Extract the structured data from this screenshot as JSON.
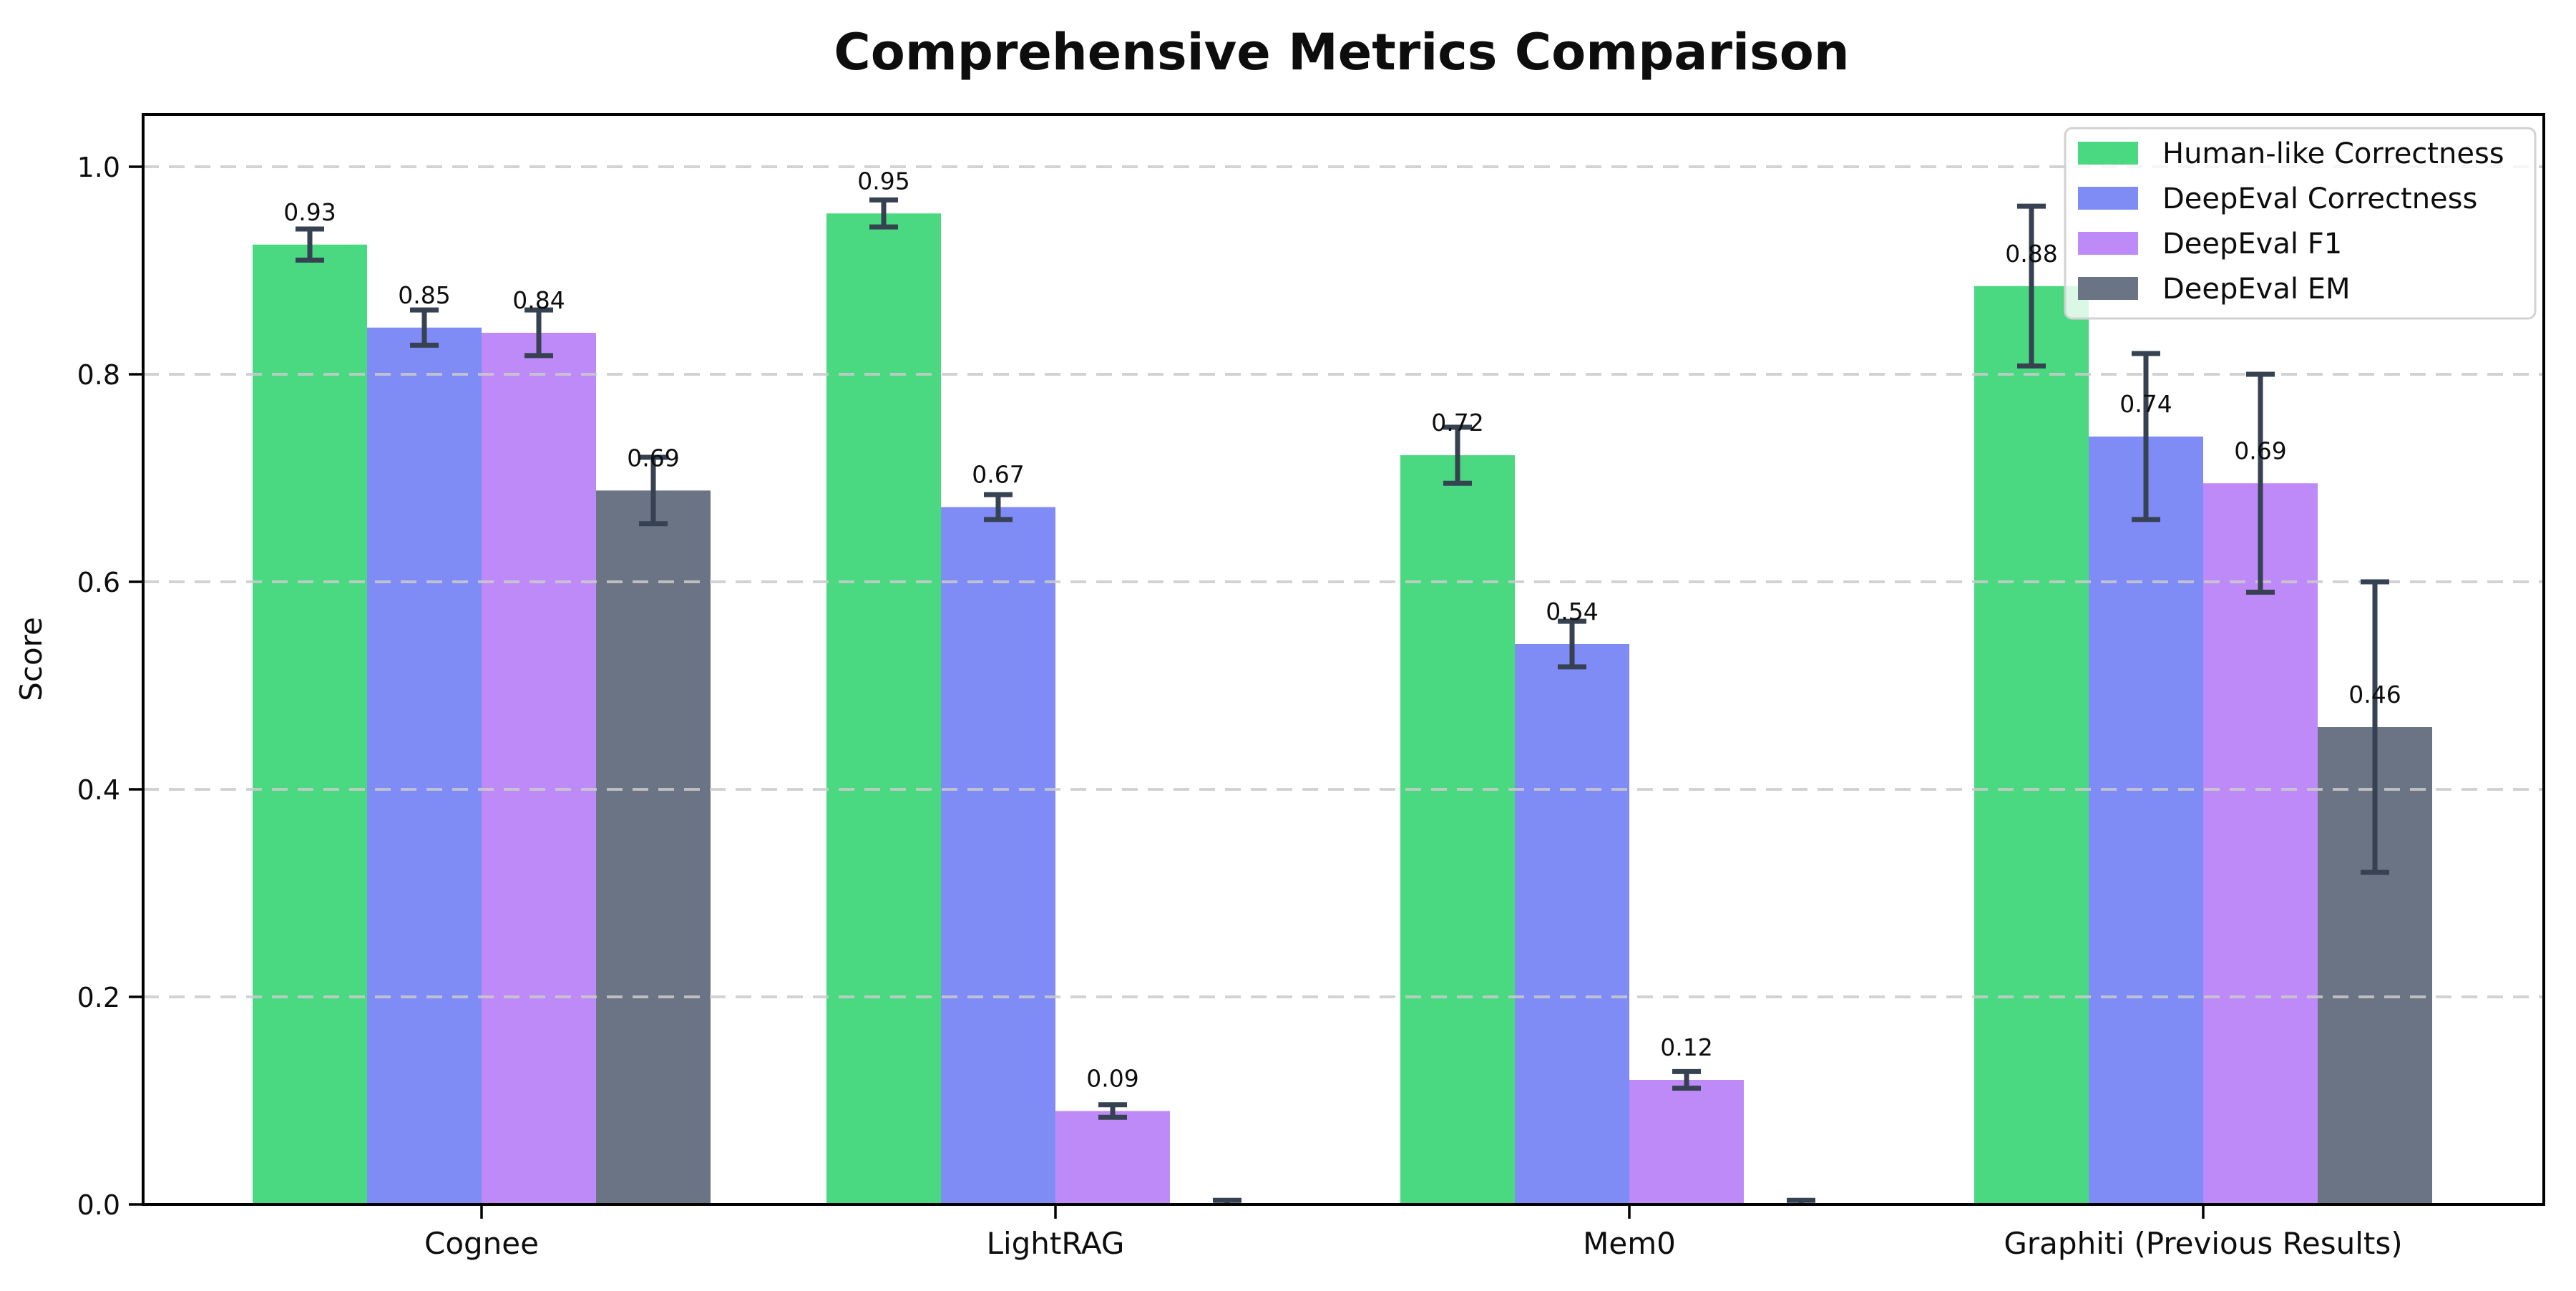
{
  "chart_data": {
    "type": "bar",
    "title": "Comprehensive Metrics Comparison",
    "ylabel": "Score",
    "xlabel": "",
    "categories": [
      "Cognee",
      "LightRAG",
      "Mem0",
      "Graphiti (Previous Results)"
    ],
    "series": [
      {
        "name": "Human-like Correctness",
        "color": "#4ad981",
        "values": [
          0.925,
          0.955,
          0.722,
          0.885
        ],
        "errors": [
          0.015,
          0.013,
          0.027,
          0.077
        ],
        "bar_labels": [
          "0.93",
          "0.95",
          "0.72",
          "0.88"
        ]
      },
      {
        "name": "DeepEval Correctness",
        "color": "#808cf5",
        "values": [
          0.845,
          0.672,
          0.54,
          0.74
        ],
        "errors": [
          0.017,
          0.012,
          0.022,
          0.08
        ],
        "bar_labels": [
          "0.85",
          "0.67",
          "0.54",
          "0.74"
        ]
      },
      {
        "name": "DeepEval F1",
        "color": "#be8af7",
        "values": [
          0.84,
          0.09,
          0.12,
          0.695
        ],
        "errors": [
          0.022,
          0.006,
          0.008,
          0.105
        ],
        "bar_labels": [
          "0.84",
          "0.09",
          "0.12",
          "0.69"
        ]
      },
      {
        "name": "DeepEval EM",
        "color": "#6a7485",
        "values": [
          0.688,
          0.0,
          0.0,
          0.46
        ],
        "errors": [
          0.032,
          0.004,
          0.004,
          0.14
        ],
        "bar_labels": [
          "0.69",
          "",
          "",
          "0.46"
        ]
      }
    ],
    "ylim": [
      0,
      1.05
    ],
    "yticks": [
      "0.0",
      "0.2",
      "0.4",
      "0.6",
      "0.8",
      "1.0"
    ],
    "grid": "horizontal-dashed",
    "legend_position": "upper right",
    "colors": {
      "axis": "#000000",
      "grid": "#cbcbcb",
      "errorbar": "#364152",
      "legend_border": "#d2d2d2",
      "legend_background": "rgba(255,255,255,0.8)",
      "text": "#0d0d0d"
    }
  }
}
